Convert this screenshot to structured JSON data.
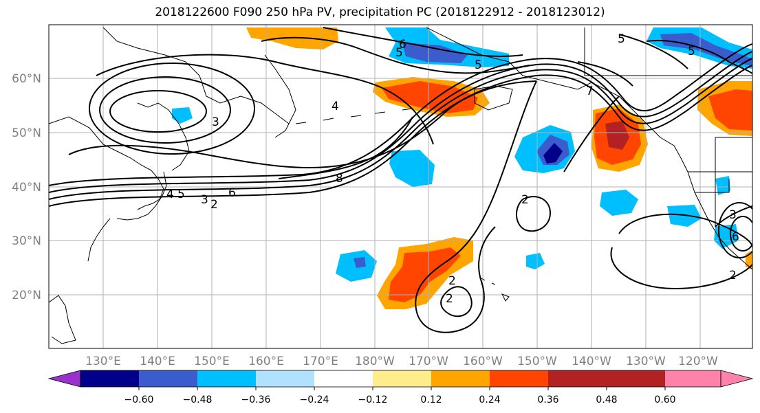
{
  "title": "2018122600 F090 250 hPa PV, precipitation PC (2018122912 - 2018123012)",
  "map": {
    "lat_labels": [
      "60°N",
      "50°N",
      "40°N",
      "30°N",
      "20°N"
    ],
    "lon_labels": [
      "130°E",
      "140°E",
      "150°E",
      "160°E",
      "170°E",
      "180°W",
      "170°W",
      "160°W",
      "150°W",
      "140°W",
      "130°W",
      "120°W"
    ],
    "contour_labels": [
      "5",
      "6",
      "5",
      "3",
      "4",
      "7",
      "5",
      "8",
      "6",
      "5",
      "4",
      "3",
      "2",
      "2",
      "2",
      "2",
      "2",
      "6",
      "3",
      "5"
    ],
    "colors": {
      "land_line": "#000000",
      "grid": "#b0b0b0",
      "contour": "#000000"
    }
  },
  "colorbar": {
    "colors": [
      "#9932cc",
      "#00008b",
      "#3a5ccd",
      "#00bfff",
      "#b0e2ff",
      "#ffffff",
      "#ffec8b",
      "#ffa500",
      "#ff4500",
      "#b22222",
      "#ff82ab"
    ],
    "tick_labels": [
      "−0.60",
      "−0.48",
      "−0.36",
      "−0.24",
      "−0.12",
      "0.12",
      "0.24",
      "0.36",
      "0.48",
      "0.60"
    ]
  }
}
